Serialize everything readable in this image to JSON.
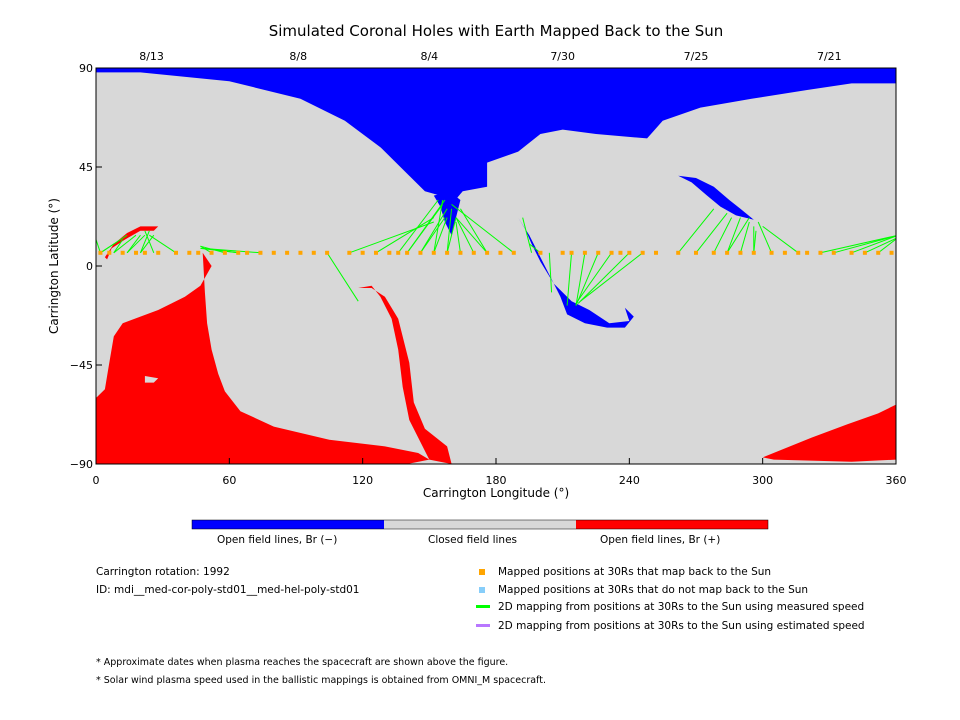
{
  "chart_data": {
    "type": "map",
    "title": "Simulated Coronal Holes with Earth Mapped Back to the Sun",
    "xlabel": "Carrington Longitude (°)",
    "ylabel": "Carrington Latitude (°)",
    "xlim": [
      0,
      360
    ],
    "ylim": [
      -90,
      90
    ],
    "x_ticks": [
      0,
      60,
      120,
      180,
      240,
      300,
      360
    ],
    "y_ticks": [
      90,
      45,
      0,
      -45,
      -90
    ],
    "y_tick_labels": [
      "90",
      "45",
      "0",
      "−45",
      "−90"
    ],
    "date_ticks": [
      {
        "label": "8/13",
        "lon": 25
      },
      {
        "label": "8/8",
        "lon": 91
      },
      {
        "label": "8/4",
        "lon": 150
      },
      {
        "label": "7/30",
        "lon": 210
      },
      {
        "label": "7/25",
        "lon": 270
      },
      {
        "label": "7/21",
        "lon": 330
      }
    ],
    "colors": {
      "open_negative": "#0000ff",
      "closed": "#d8d8d8",
      "open_positive": "#ff0000",
      "mapped_back": "#ffa500",
      "not_mapped_back": "#87cefa",
      "measured_speed_line": "#00ff00",
      "estimated_speed_line": "#b877ff"
    },
    "regions": [
      {
        "polarity": "negative",
        "points": [
          [
            0,
            90
          ],
          [
            360,
            90
          ],
          [
            360,
            83
          ],
          [
            340,
            83
          ],
          [
            320,
            80
          ],
          [
            295,
            76
          ],
          [
            272,
            72
          ],
          [
            255,
            66
          ],
          [
            248,
            58
          ],
          [
            225,
            60
          ],
          [
            210,
            62
          ],
          [
            200,
            60
          ],
          [
            190,
            52
          ],
          [
            176,
            47
          ],
          [
            176,
            36
          ],
          [
            165,
            34
          ],
          [
            160,
            28
          ],
          [
            155,
            32
          ],
          [
            148,
            34
          ],
          [
            140,
            42
          ],
          [
            128,
            54
          ],
          [
            112,
            66
          ],
          [
            92,
            76
          ],
          [
            60,
            84
          ],
          [
            20,
            88
          ],
          [
            0,
            88
          ]
        ]
      },
      {
        "polarity": "negative",
        "points": [
          [
            262,
            41
          ],
          [
            270,
            40
          ],
          [
            278,
            36
          ],
          [
            285,
            30
          ],
          [
            290,
            26
          ],
          [
            296,
            21
          ],
          [
            302,
            18
          ],
          [
            296,
            21
          ],
          [
            288,
            23
          ],
          [
            281,
            27
          ],
          [
            275,
            32
          ],
          [
            268,
            38
          ]
        ]
      },
      {
        "polarity": "negative",
        "points": [
          [
            212,
            -22
          ],
          [
            220,
            -26
          ],
          [
            230,
            -28
          ],
          [
            238,
            -28
          ],
          [
            242,
            -23
          ],
          [
            238,
            -19
          ],
          [
            240,
            -25
          ],
          [
            231,
            -26
          ],
          [
            222,
            -20
          ],
          [
            214,
            -16
          ],
          [
            206,
            -8
          ],
          [
            200,
            2
          ],
          [
            196,
            10
          ],
          [
            193,
            17
          ],
          [
            190,
            22
          ],
          [
            195,
            14
          ],
          [
            200,
            4
          ],
          [
            205,
            -6
          ],
          [
            209,
            -14
          ]
        ]
      },
      {
        "polarity": "negative",
        "points": [
          [
            152,
            32
          ],
          [
            159,
            34
          ],
          [
            164,
            30
          ],
          [
            162,
            22
          ],
          [
            160,
            14
          ],
          [
            157,
            20
          ],
          [
            155,
            27
          ]
        ]
      },
      {
        "polarity": "positive",
        "points": [
          [
            4,
            4
          ],
          [
            8,
            10
          ],
          [
            14,
            15
          ],
          [
            20,
            18
          ],
          [
            28,
            18
          ],
          [
            26,
            16
          ],
          [
            20,
            16
          ],
          [
            13,
            12
          ],
          [
            7,
            8
          ],
          [
            5,
            3
          ]
        ]
      },
      {
        "polarity": "positive",
        "points": [
          [
            48,
            6
          ],
          [
            52,
            0
          ],
          [
            47,
            -9
          ],
          [
            40,
            -14
          ],
          [
            34,
            -17
          ],
          [
            28,
            -20
          ],
          [
            20,
            -23
          ],
          [
            12,
            -26
          ],
          [
            8,
            -32
          ],
          [
            6,
            -44
          ],
          [
            4,
            -56
          ],
          [
            0,
            -60
          ],
          [
            0,
            -90
          ],
          [
            2,
            -91
          ],
          [
            60,
            -91
          ],
          [
            140,
            -90
          ],
          [
            150,
            -88
          ],
          [
            145,
            -85
          ],
          [
            130,
            -82
          ],
          [
            105,
            -79
          ],
          [
            80,
            -73
          ],
          [
            65,
            -66
          ],
          [
            58,
            -57
          ],
          [
            55,
            -49
          ],
          [
            52,
            -38
          ],
          [
            50,
            -26
          ],
          [
            49,
            -12
          ]
        ]
      },
      {
        "polarity": "positive",
        "points": [
          [
            118,
            -10
          ],
          [
            124,
            -9
          ],
          [
            128,
            -14
          ],
          [
            133,
            -24
          ],
          [
            136,
            -38
          ],
          [
            138,
            -55
          ],
          [
            141,
            -70
          ],
          [
            146,
            -80
          ],
          [
            150,
            -88
          ],
          [
            160,
            -90
          ],
          [
            158,
            -82
          ],
          [
            148,
            -74
          ],
          [
            143,
            -62
          ],
          [
            141,
            -44
          ],
          [
            136,
            -24
          ],
          [
            130,
            -14
          ],
          [
            124,
            -10
          ]
        ]
      },
      {
        "polarity": "positive",
        "points": [
          [
            300,
            -87
          ],
          [
            322,
            -78
          ],
          [
            338,
            -72
          ],
          [
            352,
            -67
          ],
          [
            360,
            -63
          ],
          [
            360,
            -88
          ],
          [
            340,
            -89
          ],
          [
            305,
            -88
          ]
        ]
      }
    ],
    "closed_islands": [
      {
        "points": [
          [
            22,
            -50
          ],
          [
            28,
            -51
          ],
          [
            26,
            -53
          ],
          [
            22,
            -53
          ]
        ]
      }
    ],
    "mapped_positions_lat": 6,
    "mapped_positions_lon": [
      2,
      6,
      12,
      18,
      22,
      28,
      36,
      42,
      46,
      52,
      58,
      64,
      68,
      74,
      80,
      86,
      92,
      98,
      104,
      114,
      120,
      126,
      132,
      136,
      140,
      146,
      152,
      158,
      164,
      170,
      176,
      182,
      188,
      200,
      210,
      214,
      220,
      226,
      232,
      236,
      240,
      246,
      252,
      262,
      270,
      278,
      284,
      290,
      296,
      304,
      310,
      316,
      320,
      326,
      332,
      340,
      346,
      352,
      358
    ],
    "mapping_lines": [
      {
        "lon": 2,
        "to": [
          [
            8,
            10
          ],
          [
            14,
            14
          ],
          [
            -1,
            15
          ]
        ]
      },
      {
        "lon": 8,
        "to": [
          [
            12,
            12
          ],
          [
            18,
            14
          ]
        ]
      },
      {
        "lon": 14,
        "to": [
          [
            20,
            14
          ],
          [
            22,
            14
          ]
        ]
      },
      {
        "lon": 20,
        "to": [
          [
            24,
            16
          ],
          [
            26,
            14
          ]
        ]
      },
      {
        "lon": 26,
        "to": [
          [
            22,
            16
          ]
        ]
      },
      {
        "lon": 36,
        "to": [
          [
            24,
            14
          ]
        ]
      },
      {
        "lon": 52,
        "to": [
          [
            47,
            9
          ]
        ]
      },
      {
        "lon": 58,
        "to": [
          [
            47,
            9
          ]
        ]
      },
      {
        "lon": 64,
        "to": [
          [
            49,
            8
          ],
          [
            47,
            8
          ]
        ]
      },
      {
        "lon": 74,
        "to": [
          [
            48,
            8
          ]
        ]
      },
      {
        "lon": 104,
        "to": [
          [
            118,
            -16
          ]
        ]
      },
      {
        "lon": 114,
        "to": [
          [
            152,
            20
          ]
        ]
      },
      {
        "lon": 126,
        "to": [
          [
            152,
            22
          ]
        ]
      },
      {
        "lon": 136,
        "to": [
          [
            154,
            30
          ]
        ]
      },
      {
        "lon": 140,
        "to": [
          [
            156,
            28
          ],
          [
            157,
            30
          ]
        ]
      },
      {
        "lon": 146,
        "to": [
          [
            158,
            26
          ],
          [
            157,
            22
          ]
        ]
      },
      {
        "lon": 152,
        "to": [
          [
            156,
            30
          ],
          [
            158,
            22
          ]
        ]
      },
      {
        "lon": 158,
        "to": [
          [
            160,
            26
          ],
          [
            162,
            22
          ]
        ]
      },
      {
        "lon": 164,
        "to": [
          [
            162,
            20
          ]
        ]
      },
      {
        "lon": 170,
        "to": [
          [
            162,
            22
          ]
        ]
      },
      {
        "lon": 176,
        "to": [
          [
            162,
            22
          ],
          [
            164,
            26
          ]
        ]
      },
      {
        "lon": 188,
        "to": [
          [
            160,
            28
          ]
        ]
      },
      {
        "lon": 196,
        "to": [
          [
            192,
            22
          ]
        ]
      },
      {
        "lon": 200,
        "to": [
          [
            195,
            10
          ]
        ]
      },
      {
        "lon": 204,
        "to": [
          [
            205,
            -12
          ]
        ]
      },
      {
        "lon": 214,
        "to": [
          [
            212,
            -18
          ]
        ]
      },
      {
        "lon": 220,
        "to": [
          [
            216,
            -18
          ]
        ]
      },
      {
        "lon": 226,
        "to": [
          [
            216,
            -18
          ]
        ]
      },
      {
        "lon": 232,
        "to": [
          [
            216,
            -17
          ]
        ]
      },
      {
        "lon": 240,
        "to": [
          [
            217,
            -17
          ]
        ]
      },
      {
        "lon": 246,
        "to": [
          [
            218,
            -16
          ]
        ]
      },
      {
        "lon": 262,
        "to": [
          [
            278,
            26
          ]
        ]
      },
      {
        "lon": 270,
        "to": [
          [
            284,
            24
          ]
        ]
      },
      {
        "lon": 278,
        "to": [
          [
            286,
            22
          ]
        ]
      },
      {
        "lon": 284,
        "to": [
          [
            290,
            22
          ],
          [
            294,
            22
          ]
        ]
      },
      {
        "lon": 290,
        "to": [
          [
            294,
            20
          ]
        ]
      },
      {
        "lon": 296,
        "to": [
          [
            296,
            18
          ],
          [
            297,
            16
          ]
        ]
      },
      {
        "lon": 304,
        "to": [
          [
            298,
            20
          ]
        ]
      },
      {
        "lon": 316,
        "to": [
          [
            300,
            18
          ]
        ]
      },
      {
        "lon": 326,
        "to": [
          [
            361,
            14
          ]
        ]
      },
      {
        "lon": 332,
        "to": [
          [
            361,
            14
          ]
        ]
      },
      {
        "lon": 340,
        "to": [
          [
            361,
            14
          ]
        ]
      },
      {
        "lon": 346,
        "to": [
          [
            361,
            13
          ]
        ]
      },
      {
        "lon": 352,
        "to": [
          [
            361,
            13
          ]
        ]
      }
    ]
  },
  "colorbar": {
    "labels": [
      "Open field lines, Br (−)",
      "Closed field lines",
      "Open field lines, Br (+)"
    ],
    "colors": [
      "#0000ff",
      "#d8d8d8",
      "#ff0000"
    ]
  },
  "info": {
    "carrington_rotation": "Carrington rotation: 1992",
    "id": "ID: mdi__med-cor-poly-std01__med-hel-poly-std01"
  },
  "legend": {
    "mapped_back": "Mapped positions at 30Rs that map back to the Sun",
    "not_mapped_back": "Mapped positions at 30Rs that do not map back to the Sun",
    "measured_speed": "2D mapping from positions at 30Rs to the Sun using measured speed",
    "estimated_speed": "2D mapping from positions at 30Rs to the Sun using estimated speed"
  },
  "notes": {
    "note1": "* Approximate dates when plasma reaches the spacecraft are shown above the figure.",
    "note2": "* Solar wind plasma speed used in the ballistic mappings is obtained from OMNI_M spacecraft."
  }
}
